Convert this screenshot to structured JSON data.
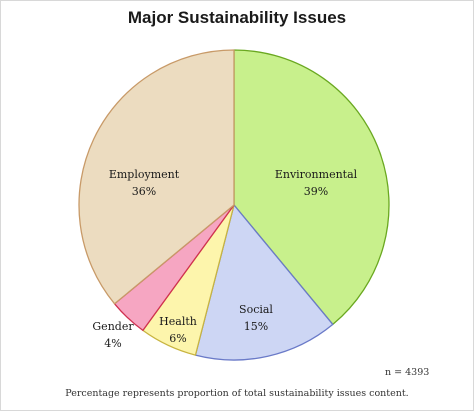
{
  "chart_data": {
    "type": "pie",
    "title": "Major Sustainability Issues",
    "slices": [
      {
        "label": "Environmental",
        "value": 39,
        "value_label": "39%",
        "color": "#c8f08c"
      },
      {
        "label": "Social",
        "value": 15,
        "value_label": "15%",
        "color": "#cdd6f4"
      },
      {
        "label": "Health",
        "value": 6,
        "value_label": "6%",
        "color": "#fdf5ac"
      },
      {
        "label": "Gender",
        "value": 4,
        "value_label": "4%",
        "color": "#f6a6c2"
      },
      {
        "label": "Employment",
        "value": 36,
        "value_label": "36%",
        "color": "#ecdcc0"
      }
    ],
    "slice_outline_colors": [
      "#6aa820",
      "#6a7ac8",
      "#c8b440",
      "#d03050",
      "#c89a68"
    ],
    "start_angle": "12 o'clock",
    "direction": "clockwise"
  },
  "annotations": {
    "n": "n = 4393",
    "footnote": "Percentage represents proportion of total sustainability issues content."
  }
}
